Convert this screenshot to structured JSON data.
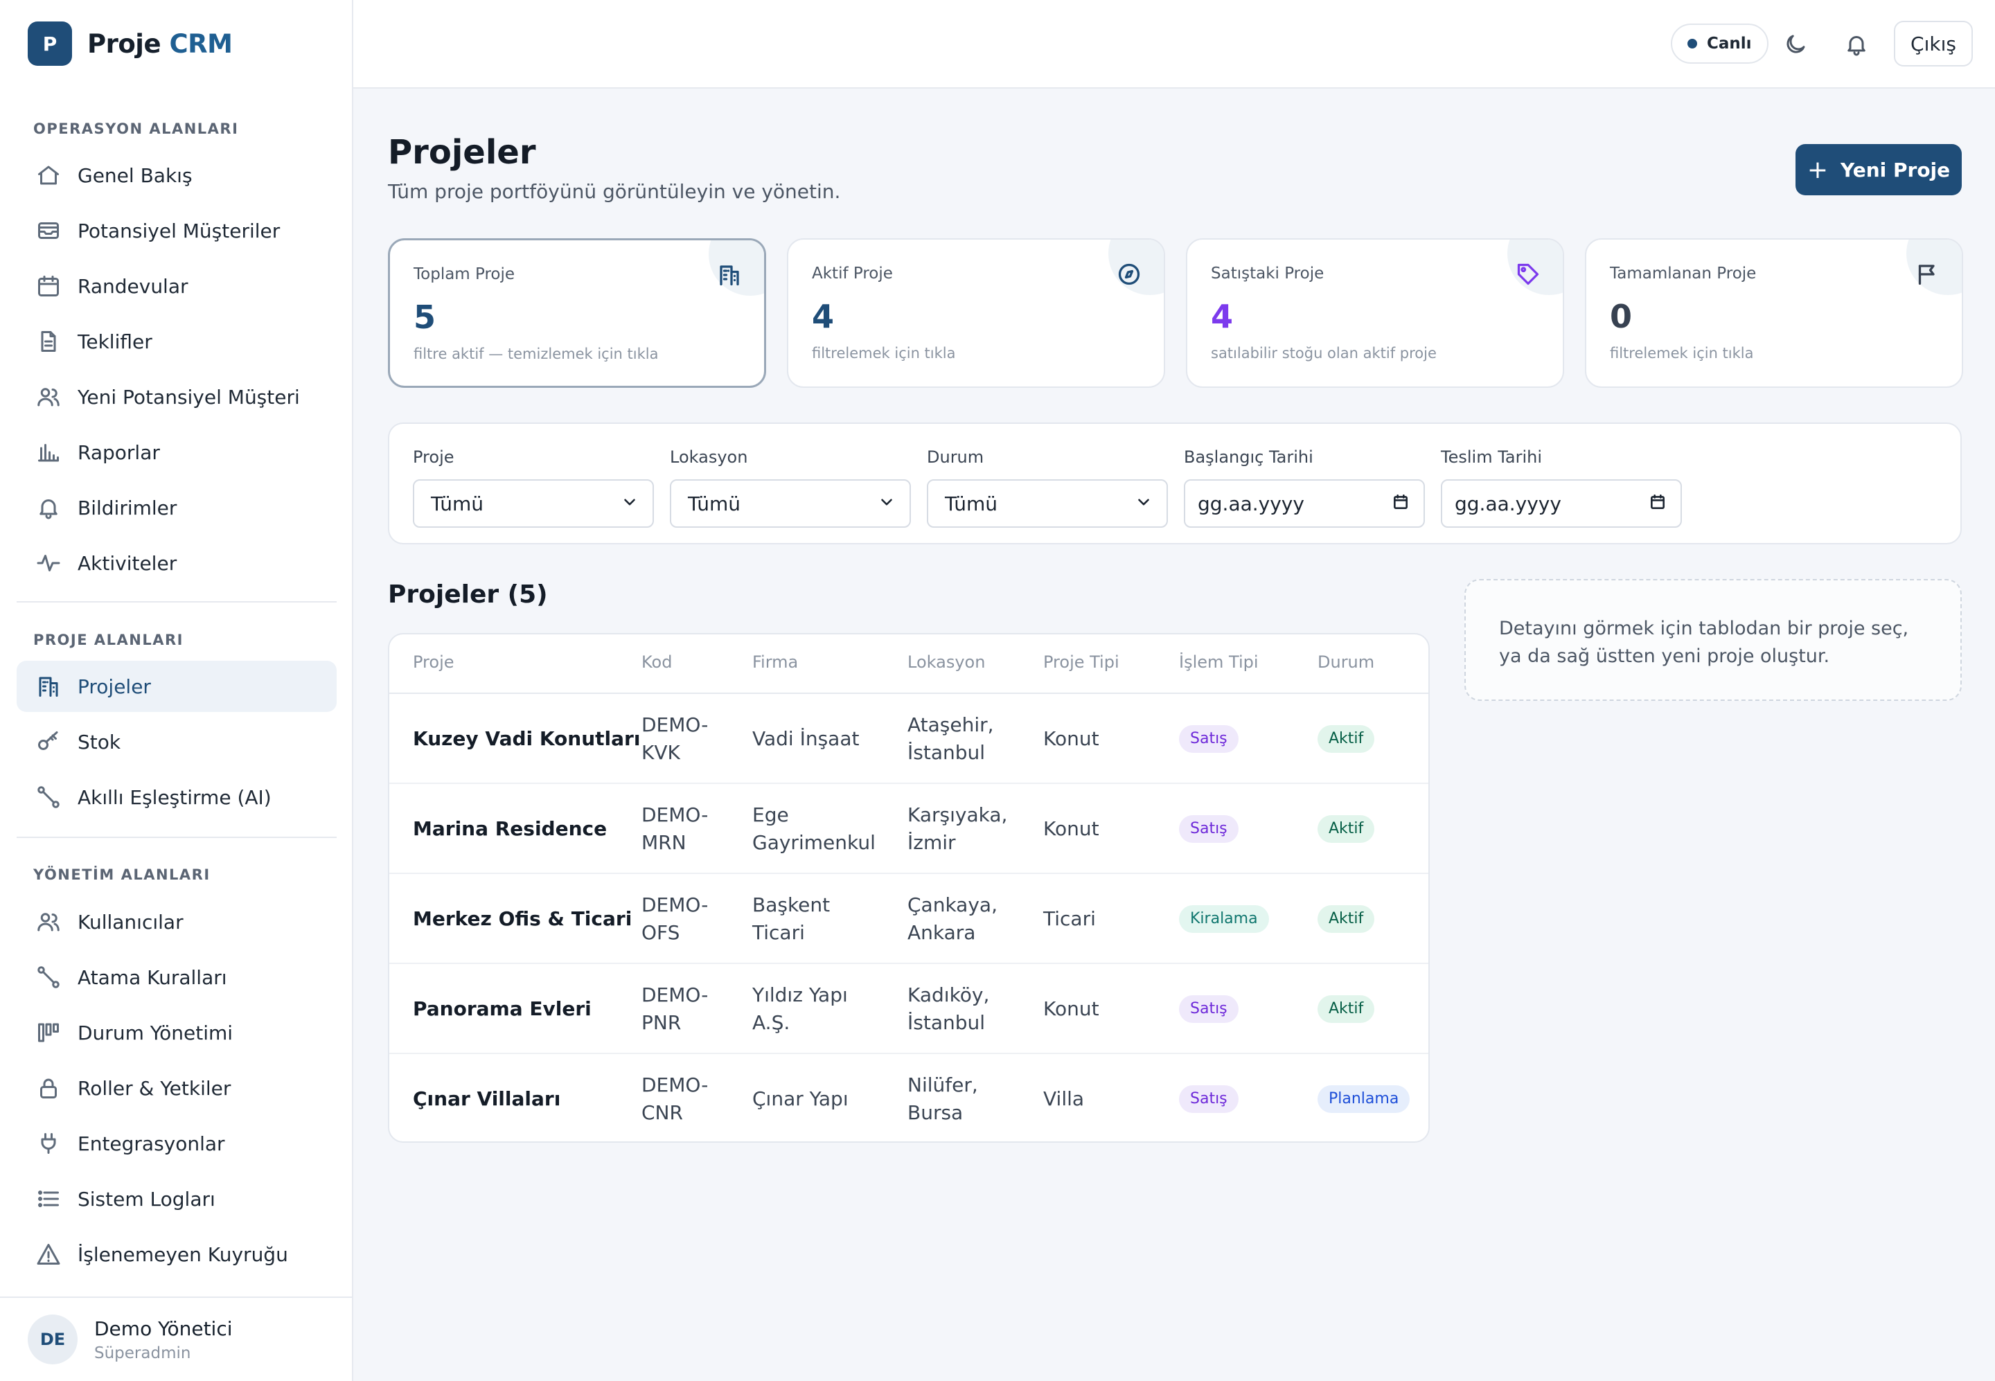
{
  "brand": {
    "logo_letter": "P",
    "name": "Proje",
    "accent": "CRM"
  },
  "sidebar": {
    "sections": [
      {
        "label": "OPERASYON ALANLARI"
      },
      {
        "label": "PROJE ALANLARI"
      },
      {
        "label": "YÖNETİM ALANLARI"
      }
    ],
    "items": [
      {
        "label": "Genel Bakış",
        "icon": "home-icon"
      },
      {
        "label": "Potansiyel Müşteriler",
        "icon": "inbox-icon"
      },
      {
        "label": "Randevular",
        "icon": "calendar-icon"
      },
      {
        "label": "Teklifler",
        "icon": "document-icon"
      },
      {
        "label": "Yeni Potansiyel Müşteri",
        "icon": "users-icon"
      },
      {
        "label": "Raporlar",
        "icon": "bar-chart-icon"
      },
      {
        "label": "Bildirimler",
        "icon": "bell-icon"
      },
      {
        "label": "Aktiviteler",
        "icon": "activity-icon"
      },
      {
        "label": "Projeler",
        "icon": "building-icon",
        "active": true
      },
      {
        "label": "Stok",
        "icon": "key-icon"
      },
      {
        "label": "Akıllı Eşleştirme (AI)",
        "icon": "route-icon"
      },
      {
        "label": "Kullanıcılar",
        "icon": "users-icon"
      },
      {
        "label": "Atama Kuralları",
        "icon": "route-icon"
      },
      {
        "label": "Durum Yönetimi",
        "icon": "kanban-icon"
      },
      {
        "label": "Roller & Yetkiler",
        "icon": "lock-icon"
      },
      {
        "label": "Entegrasyonlar",
        "icon": "plug-icon"
      },
      {
        "label": "Sistem Logları",
        "icon": "list-icon"
      },
      {
        "label": "İşlenemeyen Kuyruğu",
        "icon": "warning-icon"
      }
    ],
    "user": {
      "initials": "DE",
      "name": "Demo Yönetici",
      "role": "Süperadmin"
    }
  },
  "topbar": {
    "live_label": "Canlı",
    "logout_label": "Çıkış"
  },
  "header": {
    "title": "Projeler",
    "subtitle": "Tüm proje portföyünü görüntüleyin ve yönetin.",
    "new_button": "Yeni Proje"
  },
  "stats": [
    {
      "title": "Toplam Proje",
      "value": "5",
      "note": "filtre aktif — temizlemek için tıkla",
      "icon": "building-icon",
      "color": "#1f4d78",
      "selected": true
    },
    {
      "title": "Aktif Proje",
      "value": "4",
      "note": "filtrelemek için tıkla",
      "icon": "compass-icon",
      "color": "#1f4d78"
    },
    {
      "title": "Satıştaki Proje",
      "value": "4",
      "note": "satılabilir stoğu olan aktif proje",
      "icon": "tag-icon",
      "color": "#7c3aed"
    },
    {
      "title": "Tamamlanan Proje",
      "value": "0",
      "note": "filtrelemek için tıkla",
      "icon": "flag-icon",
      "color": "#374151"
    }
  ],
  "filters": [
    {
      "label": "Proje",
      "value": "Tümü",
      "type": "select"
    },
    {
      "label": "Lokasyon",
      "value": "Tümü",
      "type": "select"
    },
    {
      "label": "Durum",
      "value": "Tümü",
      "type": "select"
    },
    {
      "label": "Başlangıç Tarihi",
      "value": "gg.aa.yyyy",
      "type": "date"
    },
    {
      "label": "Teslim Tarihi",
      "value": "gg.aa.yyyy",
      "type": "date"
    }
  ],
  "table": {
    "title": "Projeler (5)",
    "columns": [
      "Proje",
      "Kod",
      "Firma",
      "Lokasyon",
      "Proje Tipi",
      "İşlem Tipi",
      "Durum"
    ],
    "rows": [
      {
        "name": "Kuzey Vadi Konutları",
        "code": "DEMO-\nKVK",
        "company": "Vadi İnşaat",
        "location": "Ataşehir,\nİstanbul",
        "type": "Konut",
        "deal": "Satış",
        "status": "Aktif"
      },
      {
        "name": "Marina Residence",
        "code": "DEMO-\nMRN",
        "company": "Ege\nGayrimenkul",
        "location": "Karşıyaka,\nİzmir",
        "type": "Konut",
        "deal": "Satış",
        "status": "Aktif"
      },
      {
        "name": "Merkez Ofis & Ticari",
        "code": "DEMO-\nOFS",
        "company": "Başkent\nTicari",
        "location": "Çankaya,\nAnkara",
        "type": "Ticari",
        "deal": "Kiralama",
        "status": "Aktif"
      },
      {
        "name": "Panorama Evleri",
        "code": "DEMO-\nPNR",
        "company": "Yıldız Yapı\nA.Ş.",
        "location": "Kadıköy,\nİstanbul",
        "type": "Konut",
        "deal": "Satış",
        "status": "Aktif"
      },
      {
        "name": "Çınar Villaları",
        "code": "DEMO-\nCNR",
        "company": "Çınar Yapı",
        "location": "Nilüfer,\nBursa",
        "type": "Villa",
        "deal": "Satış",
        "status": "Planlama"
      }
    ]
  },
  "detail_hint": "Detayını görmek için tablodan bir proje seç, ya da sağ üstten yeni proje oluştur.",
  "colors": {
    "primary": "#1f4d78",
    "badge_sale": "#6d28d9",
    "badge_rent": "#0f766e",
    "badge_active": "#065f46",
    "badge_planning": "#1d4ed8"
  }
}
